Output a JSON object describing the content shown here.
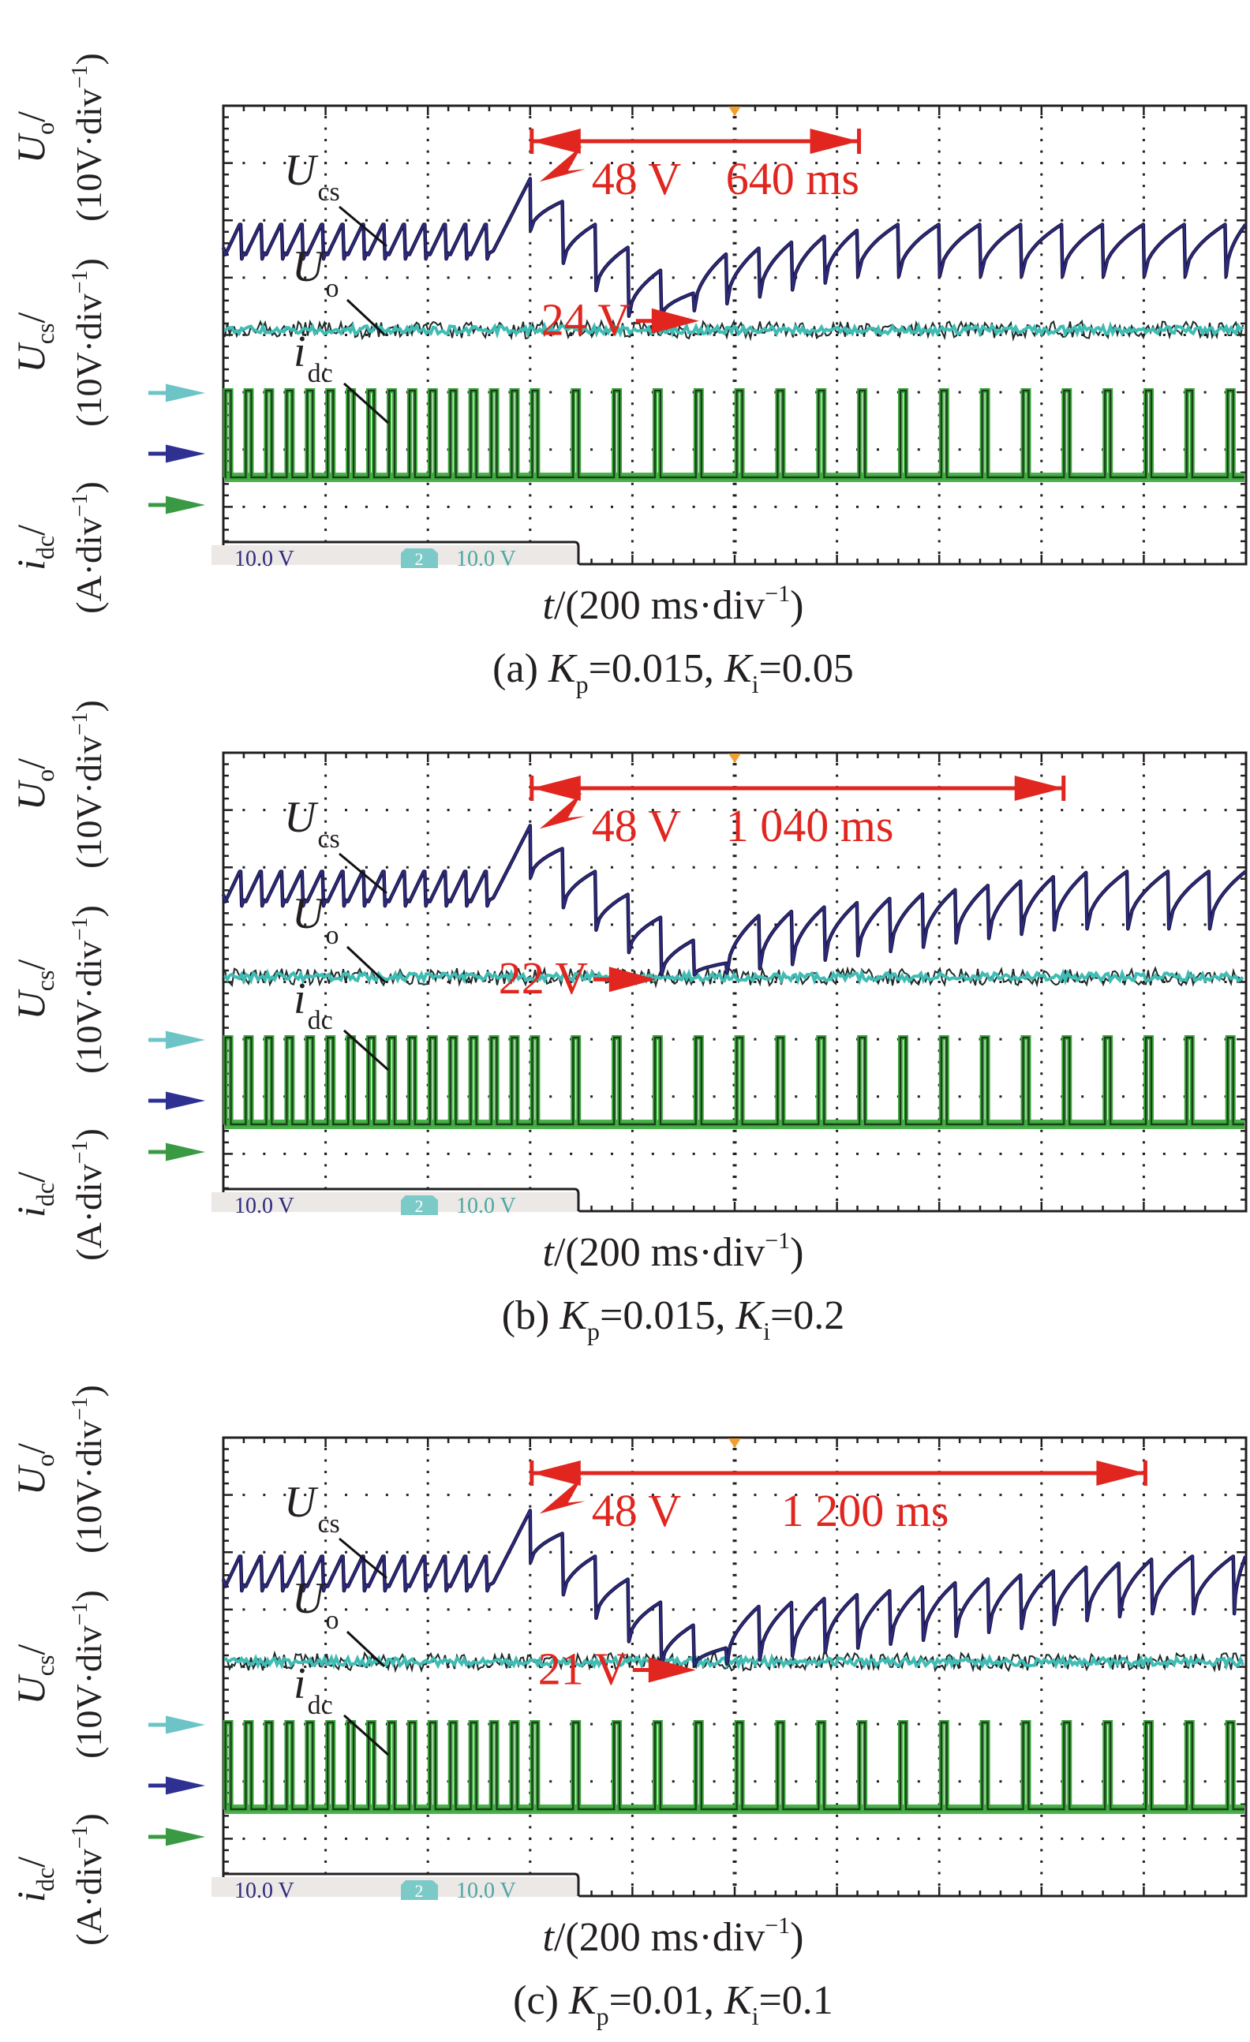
{
  "figure": {
    "axis_label_lines": {
      "symbols": [
        {
          "base": "i",
          "sub": "dc",
          "suffix": "/"
        },
        {
          "base": "U",
          "sub": "cs",
          "suffix": "/"
        },
        {
          "base": "U",
          "sub": "o",
          "suffix": "/"
        }
      ],
      "units": [
        "(A·div",
        ")(10V·div",
        ")(10V·div",
        ")"
      ],
      "unit_exponent": "−1"
    },
    "x_label": {
      "var": "t",
      "text": "/(200 ms·div",
      "exponent": "−1",
      "close": ")"
    },
    "status_bar": {
      "ch1_scale": "10.0 V",
      "ch2_badge": "2",
      "ch2_scale": "10.0 V"
    },
    "trace_labels": {
      "ucs": {
        "base": "U",
        "sub": "cs"
      },
      "uo": {
        "base": "U",
        "sub": "o"
      },
      "idc": {
        "base": "i",
        "sub": "dc"
      }
    },
    "colors": {
      "ucs": "#2e2a7c",
      "uo": "#3fbcb4",
      "idc": "#3aa83a",
      "annotation": "#e0261f",
      "trigger": "#f0a030",
      "grid": "#231f20",
      "status_bg": "#ebe8e6",
      "arrow_uo": "#6cc4c6",
      "arrow_ucs": "#2e3192",
      "arrow_idc": "#3a9a44"
    }
  },
  "chart_data": [
    {
      "type": "line",
      "id": "a",
      "title": "(a) Kp=0.015, Ki=0.05",
      "caption": {
        "prefix": "(a) ",
        "kp": "0.015",
        "ki": "0.05"
      },
      "xlabel": "t/(200 ms·div⁻¹)",
      "ylabel": "idc/(A·div⁻¹)  Ucs/(10V·div⁻¹)  Uo/(10V·div⁻¹)",
      "x_unit": "ms",
      "xlim": [
        0,
        2000
      ],
      "x_per_div": 200,
      "y_per_div": 10,
      "divisions": {
        "x": 10,
        "y": 8
      },
      "grid": true,
      "event_time_ms": 600,
      "trigger_time_ms": 1000,
      "ucs": {
        "steady_min": 34,
        "steady_max": 40,
        "peak": 48,
        "dip": 24,
        "post_min": 31,
        "post_max": 40,
        "recovery_ms": 640
      },
      "uo": {
        "level": 11
      },
      "idc": {
        "pulse_period_before_ms": 40,
        "pulse_period_after_ms": 80
      },
      "annotations": {
        "peak": "48 V",
        "duration": "640 ms",
        "dip": "24 V"
      }
    },
    {
      "type": "line",
      "id": "b",
      "title": "(b) Kp=0.015, Ki=0.2",
      "caption": {
        "prefix": "(b) ",
        "kp": "0.015",
        "ki": "0.2"
      },
      "xlabel": "t/(200 ms·div⁻¹)",
      "ylabel": "idc/(A·div⁻¹)  Ucs/(10V·div⁻¹)  Uo/(10V·div⁻¹)",
      "x_unit": "ms",
      "xlim": [
        0,
        2000
      ],
      "x_per_div": 200,
      "y_per_div": 10,
      "divisions": {
        "x": 10,
        "y": 8
      },
      "grid": true,
      "event_time_ms": 600,
      "trigger_time_ms": 1000,
      "ucs": {
        "steady_min": 34,
        "steady_max": 40,
        "peak": 48,
        "dip": 22,
        "post_min": 30,
        "post_max": 40,
        "recovery_ms": 1040
      },
      "uo": {
        "level": 11
      },
      "idc": {
        "pulse_period_before_ms": 40,
        "pulse_period_after_ms": 80
      },
      "annotations": {
        "peak": "48 V",
        "duration": "1 040 ms",
        "dip": "22 V"
      }
    },
    {
      "type": "line",
      "id": "c",
      "title": "(c) Kp=0.01, Ki=0.1",
      "caption": {
        "prefix": "(c) ",
        "kp": "0.01",
        "ki": "0.1"
      },
      "xlabel": "t/(200 ms·div⁻¹)",
      "ylabel": "idc/(A·div⁻¹)  Ucs/(10V·div⁻¹)  Uo/(10V·div⁻¹)",
      "x_unit": "ms",
      "xlim": [
        0,
        2000
      ],
      "x_per_div": 200,
      "y_per_div": 10,
      "divisions": {
        "x": 10,
        "y": 8
      },
      "grid": true,
      "event_time_ms": 600,
      "trigger_time_ms": 1000,
      "ucs": {
        "steady_min": 34,
        "steady_max": 40,
        "peak": 48,
        "dip": 21,
        "post_min": 30,
        "post_max": 40,
        "recovery_ms": 1200
      },
      "uo": {
        "level": 11
      },
      "idc": {
        "pulse_period_before_ms": 40,
        "pulse_period_after_ms": 80
      },
      "annotations": {
        "peak": "48 V",
        "duration": "1 200 ms",
        "dip": "21 V"
      }
    }
  ]
}
